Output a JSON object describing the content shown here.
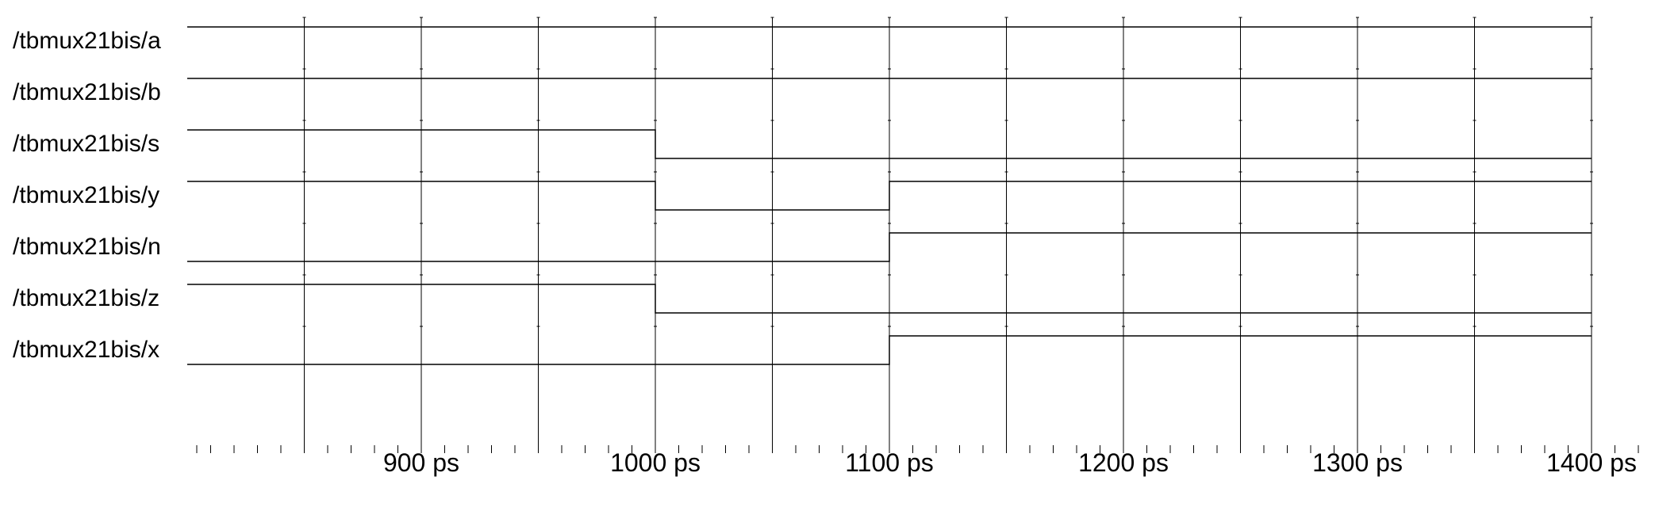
{
  "chart_data": {
    "type": "line",
    "title": "",
    "xlabel": "",
    "ylabel": "",
    "x_unit": "ps",
    "xlim": [
      800,
      1420
    ],
    "grid": true,
    "x_ticks": [
      900,
      1000,
      1100,
      1200,
      1300,
      1400
    ],
    "x_tick_labels": [
      "900 ps",
      "1000 ps",
      "1100 ps",
      "1200 ps",
      "1300 ps",
      "1400 ps"
    ],
    "series": [
      {
        "name": "/tbmux21bis/a",
        "x": [
          800,
          1400
        ],
        "values": [
          1,
          1
        ]
      },
      {
        "name": "/tbmux21bis/b",
        "x": [
          800,
          1400
        ],
        "values": [
          1,
          1
        ]
      },
      {
        "name": "/tbmux21bis/s",
        "x": [
          800,
          1000,
          1400
        ],
        "values": [
          1,
          0,
          0
        ]
      },
      {
        "name": "/tbmux21bis/y",
        "x": [
          800,
          1000,
          1100,
          1400
        ],
        "values": [
          1,
          0,
          1,
          1
        ]
      },
      {
        "name": "/tbmux21bis/n",
        "x": [
          800,
          1100,
          1400
        ],
        "values": [
          0,
          1,
          1
        ]
      },
      {
        "name": "/tbmux21bis/z",
        "x": [
          800,
          1000,
          1400
        ],
        "values": [
          1,
          0,
          0
        ]
      },
      {
        "name": "/tbmux21bis/x",
        "x": [
          800,
          1100,
          1400
        ],
        "values": [
          0,
          1,
          1
        ]
      }
    ],
    "colors": {
      "line": "#000000",
      "background": "#ffffff"
    }
  }
}
